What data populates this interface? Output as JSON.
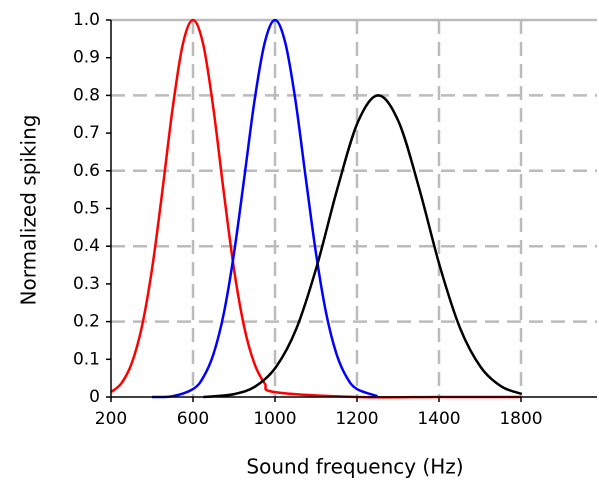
{
  "chart_data": {
    "type": "line",
    "x_label": "Sound frequency (Hz)",
    "y_label": "Normalized spiking",
    "xlim": [
      200,
      2000
    ],
    "xticks": [
      200,
      600,
      1000,
      1200,
      1400,
      1800
    ],
    "ylim": [
      0,
      1
    ],
    "yticks": [
      0,
      0.1,
      0.2,
      0.3,
      0.4,
      0.5,
      0.6,
      0.7,
      0.8,
      0.9,
      {
        "value": 1,
        "label": "1.0"
      }
    ],
    "grid": true,
    "series": [
      {
        "color": "#ff0000",
        "x": [
          200,
          250,
          300,
          350,
          400,
          450,
          500,
          550,
          600,
          650,
          700,
          750,
          800,
          850,
          900,
          950,
          1000,
          1200,
          1400,
          1800
        ],
        "values": [
          0.013,
          0.036,
          0.088,
          0.185,
          0.339,
          0.544,
          0.763,
          0.935,
          1,
          0.935,
          0.763,
          0.544,
          0.339,
          0.185,
          0.088,
          0.036,
          0.013,
          0,
          0,
          0
        ]
      },
      {
        "color": "#0000ff",
        "x": [
          400,
          500,
          600,
          650,
          700,
          750,
          800,
          850,
          900,
          950,
          1000,
          1025,
          1050,
          1075,
          1100,
          1125,
          1150,
          1175,
          1200,
          1250
        ],
        "values": [
          0,
          0.002,
          0.021,
          0.052,
          0.114,
          0.221,
          0.381,
          0.581,
          0.786,
          0.94,
          1,
          0.94,
          0.786,
          0.581,
          0.381,
          0.221,
          0.114,
          0.052,
          0.021,
          0.002
        ]
      },
      {
        "color": "#000000",
        "x": [
          650,
          704,
          804,
          904,
          1002,
          1052,
          1102,
          1152,
          1202,
          1252,
          1302,
          1352,
          1404,
          1504,
          1604,
          1704,
          1802
        ],
        "values": [
          0,
          0.002,
          0.008,
          0.028,
          0.079,
          0.181,
          0.347,
          0.552,
          0.729,
          0.8,
          0.729,
          0.552,
          0.347,
          0.181,
          0.079,
          0.028,
          0.008
        ]
      }
    ]
  }
}
